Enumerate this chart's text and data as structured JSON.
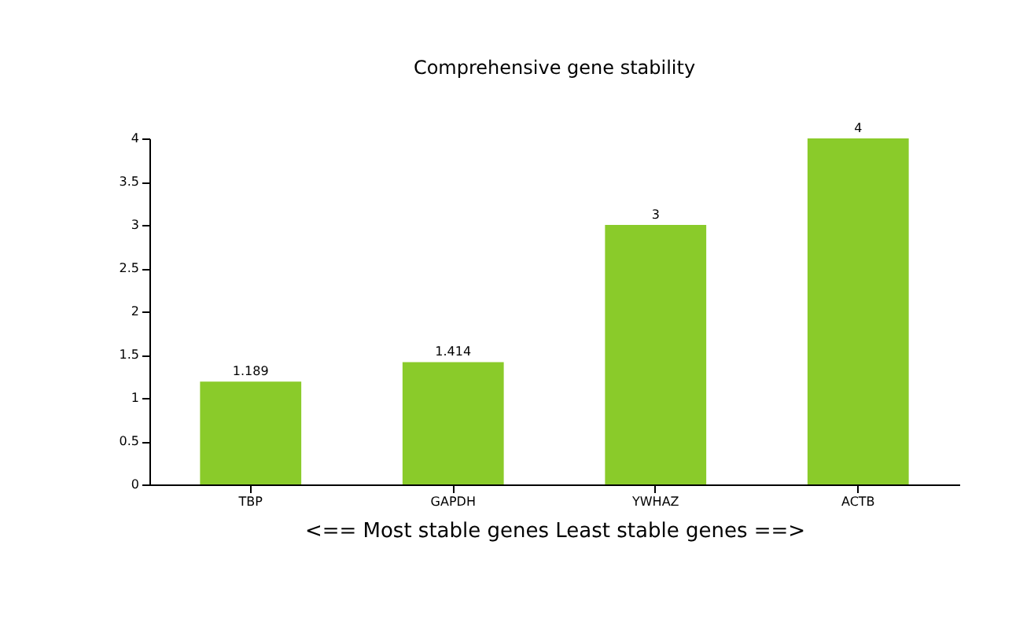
{
  "chart_data": {
    "type": "bar",
    "title": "Comprehensive gene stability",
    "xlabel": "<== Most stable genes    Least stable genes ==>",
    "categories": [
      "TBP",
      "GAPDH",
      "YWHAZ",
      "ACTB"
    ],
    "values": [
      1.189,
      1.414,
      3,
      4
    ],
    "color": "#8acb2a",
    "ylim": [
      0,
      4
    ],
    "yticks": [
      0,
      0.5,
      1,
      1.5,
      2,
      2.5,
      3,
      3.5,
      4
    ],
    "data_labels": true
  }
}
